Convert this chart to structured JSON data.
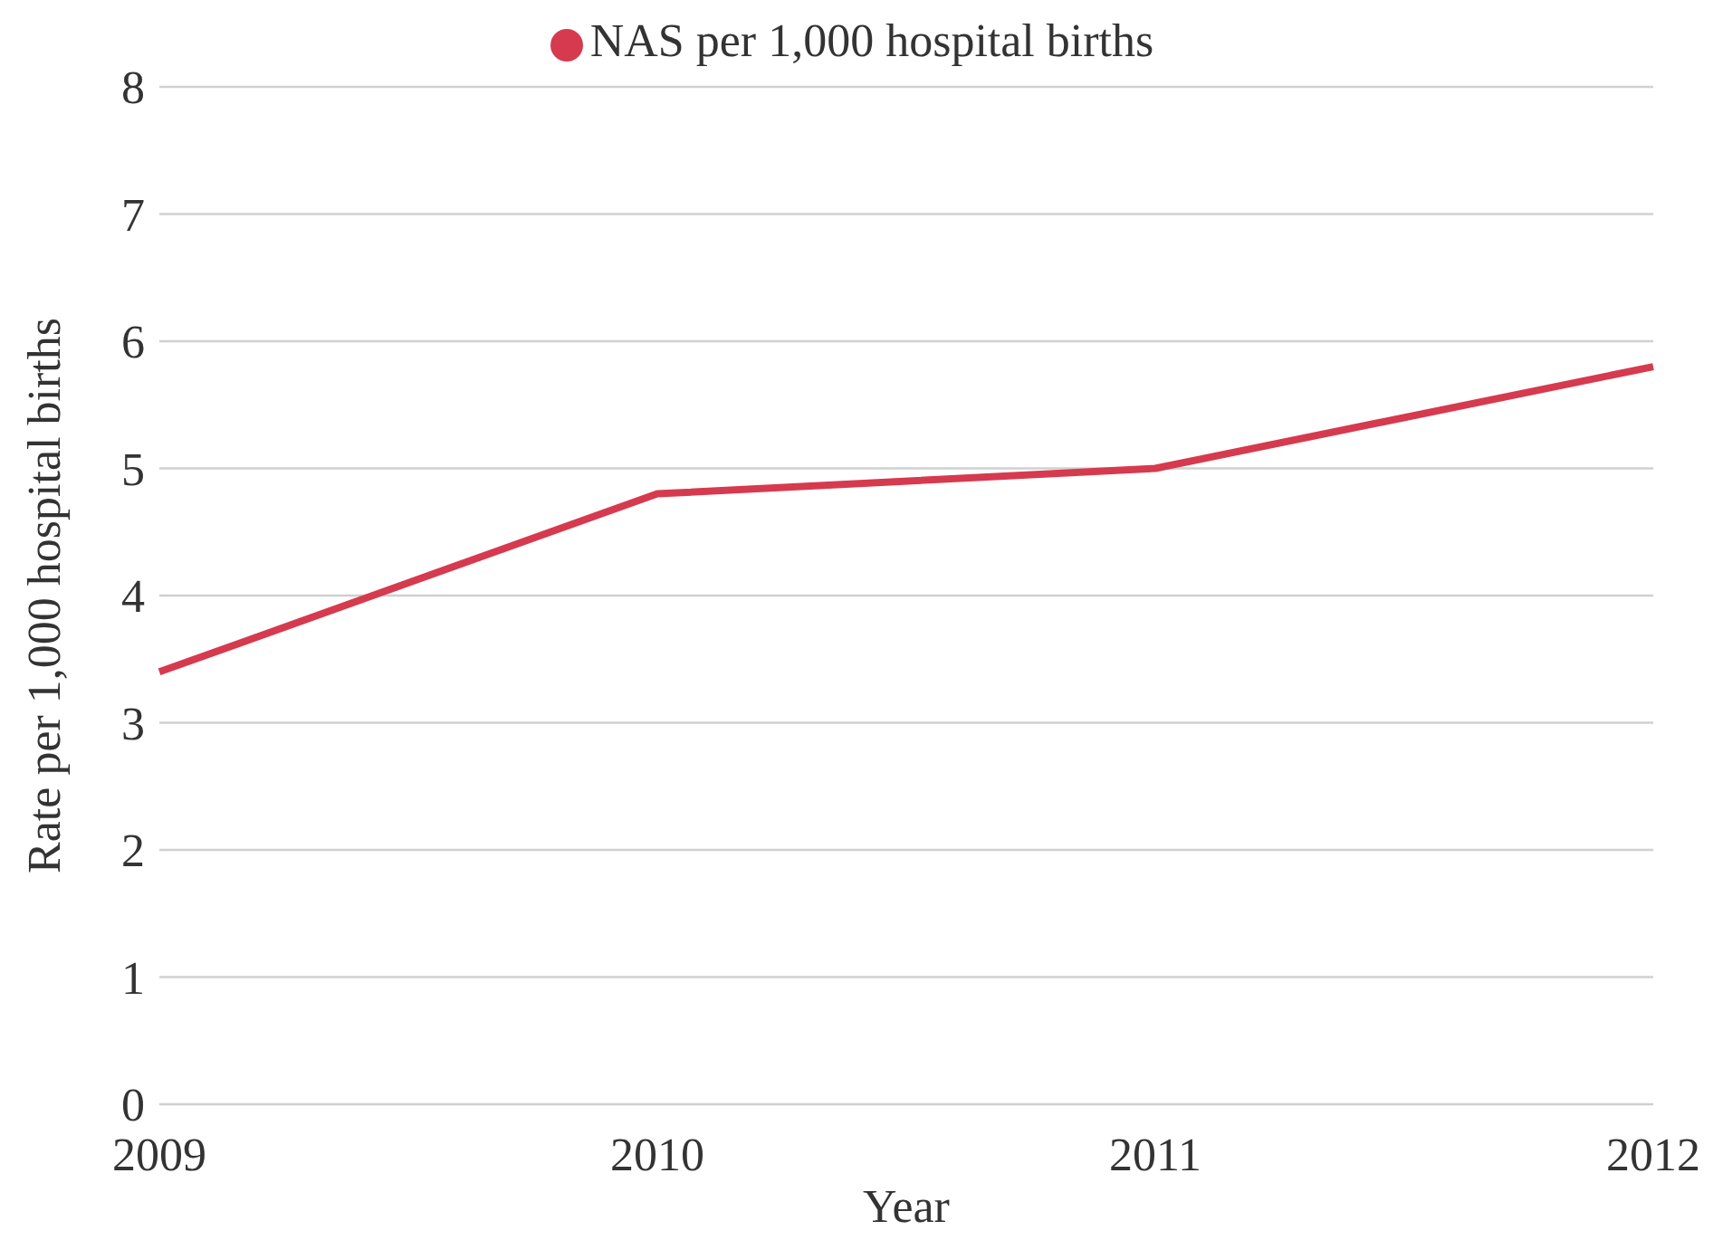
{
  "chart_data": {
    "type": "line",
    "xlabel": "Year",
    "ylabel": "Rate per 1,000 hospital births",
    "categories": [
      "2009",
      "2010",
      "2011",
      "2012"
    ],
    "series": [
      {
        "name": "NAS per 1,000 hospital births",
        "color": "#d63a4e",
        "values": [
          3.4,
          4.8,
          5.0,
          5.8
        ]
      }
    ],
    "ylim": [
      0,
      8
    ],
    "yticks": [
      0,
      1,
      2,
      3,
      4,
      5,
      6,
      7,
      8
    ],
    "grid": "y",
    "legend": "top",
    "marker": "none",
    "line_style": "solid"
  }
}
